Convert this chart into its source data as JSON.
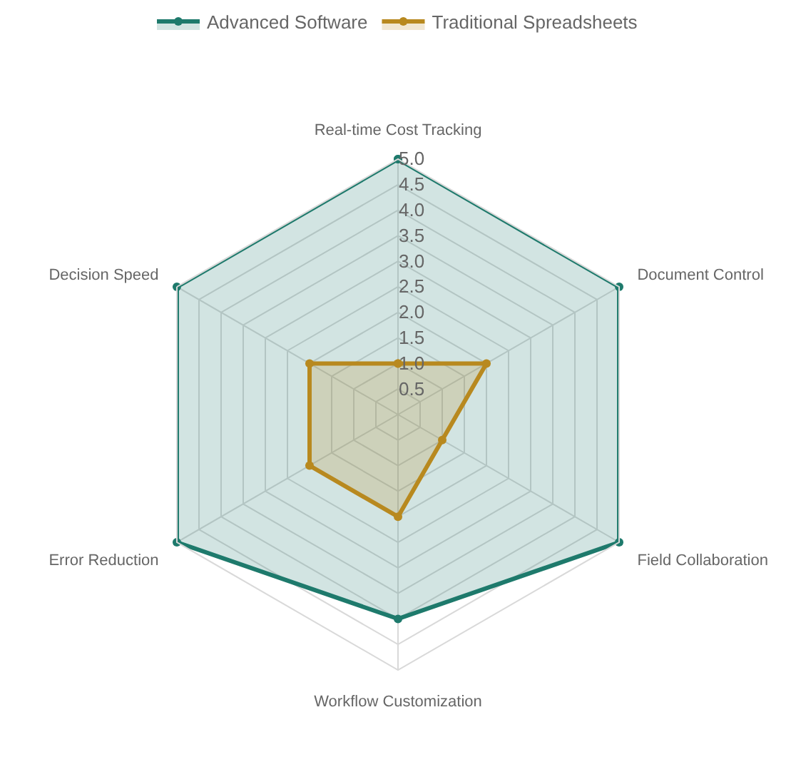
{
  "chart_data": {
    "type": "radar",
    "categories": [
      "Real-time Cost Tracking",
      "Document Control",
      "Field Collaboration",
      "Workflow Customization",
      "Error Reduction",
      "Decision Speed"
    ],
    "series": [
      {
        "name": "Advanced Software",
        "color": "#1e7a6c",
        "values": [
          5,
          5,
          5,
          4,
          5,
          5
        ]
      },
      {
        "name": "Traditional Spreadsheets",
        "color": "#b8891f",
        "values": [
          1,
          2,
          1,
          2,
          2,
          2
        ]
      }
    ],
    "ylim": [
      0,
      5
    ],
    "yticks": [
      0.5,
      {
        "value": 1,
        "label": "1.0"
      },
      1.5,
      {
        "value": 2,
        "label": "2.0"
      },
      2.5,
      {
        "value": 3,
        "label": "3.0"
      },
      3.5,
      {
        "value": 4,
        "label": "4.0"
      },
      4.5,
      {
        "value": 5,
        "label": "5.0"
      }
    ],
    "grid": true,
    "legend": "top",
    "marker": "circle"
  }
}
